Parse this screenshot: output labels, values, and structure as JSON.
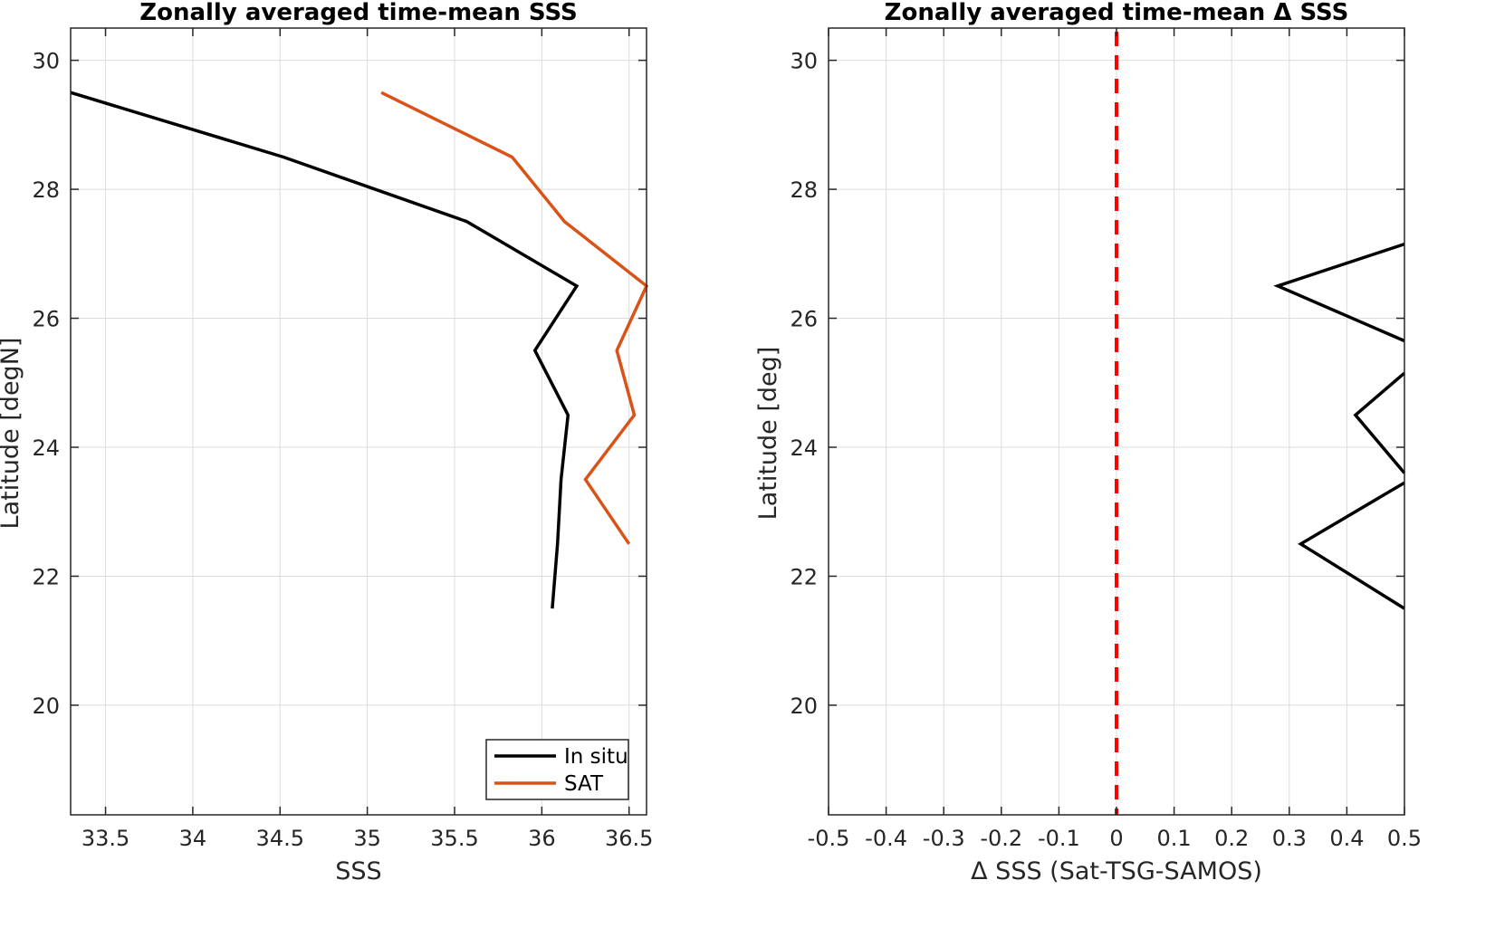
{
  "chart_data": [
    {
      "type": "line",
      "title": "Zonally averaged time-mean SSS",
      "xlabel": "SSS",
      "ylabel": "Latitude [degN]",
      "xlim": [
        33.3,
        36.6
      ],
      "ylim": [
        18.3,
        30.5
      ],
      "xticks": [
        33.5,
        34,
        34.5,
        35,
        35.5,
        36,
        36.5
      ],
      "xtick_labels": [
        "33.5",
        "34",
        "34.5",
        "35",
        "35.5",
        "36",
        "36.5"
      ],
      "yticks": [
        20,
        22,
        24,
        26,
        28,
        30
      ],
      "ytick_labels": [
        "20",
        "22",
        "24",
        "26",
        "28",
        "30"
      ],
      "grid": true,
      "legend": "bottom-right",
      "series": [
        {
          "name": "In situ",
          "color": "#000000",
          "x": [
            33.3,
            34.52,
            35.57,
            36.2,
            35.96,
            36.15,
            36.11,
            36.09,
            36.06
          ],
          "y": [
            29.5,
            28.5,
            27.5,
            26.5,
            25.5,
            24.5,
            23.5,
            22.5,
            21.5
          ]
        },
        {
          "name": "SAT",
          "color": "#d95319",
          "x": [
            35.08,
            35.83,
            36.13,
            36.6,
            36.43,
            36.53,
            36.25,
            36.5
          ],
          "y": [
            29.5,
            28.5,
            27.5,
            26.5,
            25.5,
            24.5,
            23.5,
            22.5
          ]
        }
      ]
    },
    {
      "type": "line",
      "title": "Zonally averaged time-mean Δ SSS",
      "xlabel": "Δ SSS (Sat-TSG-SAMOS)",
      "ylabel": "Latitude [deg]",
      "xlim": [
        -0.5,
        0.5
      ],
      "ylim": [
        18.3,
        30.5
      ],
      "xticks": [
        -0.5,
        -0.4,
        -0.3,
        -0.2,
        -0.1,
        0,
        0.1,
        0.2,
        0.3,
        0.4,
        0.5
      ],
      "xtick_labels": [
        "-0.5",
        "-0.4",
        "-0.3",
        "-0.2",
        "-0.1",
        "0",
        "0.1",
        "0.2",
        "0.3",
        "0.4",
        "0.5"
      ],
      "yticks": [
        20,
        22,
        24,
        26,
        28,
        30
      ],
      "ytick_labels": [
        "20",
        "22",
        "24",
        "26",
        "28",
        "30"
      ],
      "grid": true,
      "reference_line": {
        "x": 0,
        "color": "#ff0000",
        "style": "dashed"
      },
      "series": [
        {
          "color": "#000000",
          "x": [
            0.5,
            0.28,
            0.5,
            null,
            0.5,
            0.415,
            0.5,
            null,
            0.5,
            0.32,
            0.5
          ],
          "y": [
            27.15,
            26.5,
            25.65,
            null,
            25.15,
            24.5,
            23.6,
            null,
            23.45,
            22.5,
            21.5
          ]
        }
      ]
    }
  ]
}
